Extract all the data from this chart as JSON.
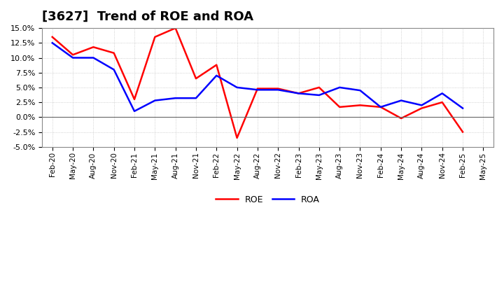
{
  "title": "[3627]  Trend of ROE and ROA",
  "labels": [
    "Feb-20",
    "May-20",
    "Aug-20",
    "Nov-20",
    "Feb-21",
    "May-21",
    "Aug-21",
    "Nov-21",
    "Feb-22",
    "May-22",
    "Aug-22",
    "Nov-22",
    "Feb-23",
    "May-23",
    "Aug-23",
    "Nov-23",
    "Feb-24",
    "May-24",
    "Aug-24",
    "Nov-24",
    "Feb-25",
    "May-25"
  ],
  "ROE": [
    13.5,
    10.5,
    11.8,
    10.8,
    3.0,
    13.5,
    15.0,
    6.5,
    8.8,
    -3.5,
    4.8,
    4.8,
    4.0,
    5.0,
    1.7,
    2.0,
    1.7,
    -0.2,
    1.5,
    2.5,
    -2.5,
    null
  ],
  "ROA": [
    12.5,
    10.0,
    10.0,
    8.0,
    1.0,
    2.8,
    3.2,
    3.2,
    7.0,
    5.0,
    4.6,
    4.6,
    4.0,
    3.7,
    5.0,
    4.5,
    1.7,
    2.8,
    2.0,
    4.0,
    1.5,
    null
  ],
  "roe_color": "#ff0000",
  "roa_color": "#0000ff",
  "ylim": [
    -5.0,
    15.0
  ],
  "yticks": [
    -5.0,
    -2.5,
    0.0,
    2.5,
    5.0,
    7.5,
    10.0,
    12.5,
    15.0
  ],
  "bg_color": "#ffffff",
  "grid_color": "#aaaaaa",
  "title_fontsize": 13
}
